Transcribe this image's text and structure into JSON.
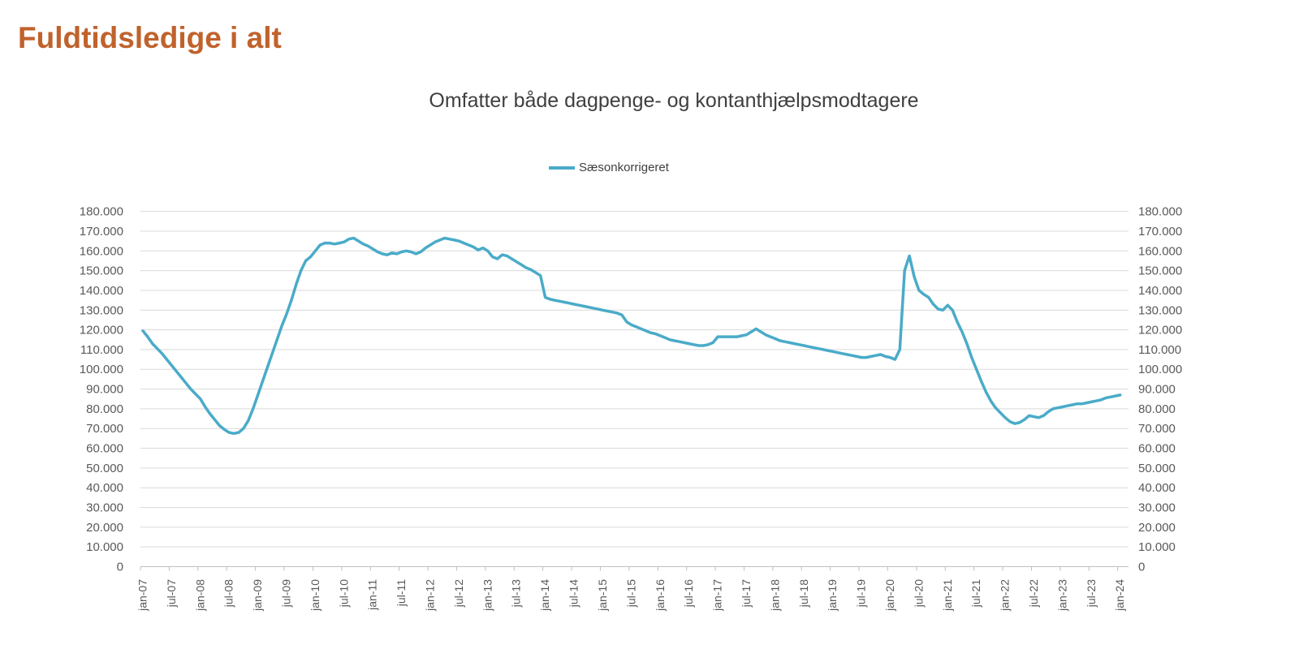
{
  "page": {
    "title": "Fuldtidsledige i alt",
    "title_color": "#C0622C"
  },
  "chart": {
    "title": "Omfatter både dagpenge- og kontanthjælpsmodtagere",
    "legend": [
      {
        "label": "Sæsonkorrigeret",
        "color": "#4AABC8"
      }
    ]
  },
  "chart_data": {
    "type": "line",
    "title": "Omfatter både dagpenge- og kontanthjælpsmodtagere",
    "xlabel": "",
    "ylabel": "",
    "ylim": [
      0,
      180000
    ],
    "y_ticks": [
      0,
      10000,
      20000,
      30000,
      40000,
      50000,
      60000,
      70000,
      80000,
      90000,
      100000,
      110000,
      120000,
      130000,
      140000,
      150000,
      160000,
      170000,
      180000
    ],
    "y_tick_labels": [
      "0",
      "10.000",
      "20.000",
      "30.000",
      "40.000",
      "50.000",
      "60.000",
      "70.000",
      "80.000",
      "90.000",
      "100.000",
      "110.000",
      "120.000",
      "130.000",
      "140.000",
      "150.000",
      "160.000",
      "170.000",
      "180.000"
    ],
    "grid": "horizontal",
    "legend_position": "top-center",
    "y_axis_sides": "both",
    "x_start_month": "jan-07",
    "x_end_month": "jan-24",
    "x_tick_interval_months": 6,
    "x_tick_labels": [
      "jan-07",
      "jul-07",
      "jan-08",
      "jul-08",
      "jan-09",
      "jul-09",
      "jan-10",
      "jul-10",
      "jan-11",
      "jul-11",
      "jan-12",
      "jul-12",
      "jan-13",
      "jul-13",
      "jan-14",
      "jul-14",
      "jan-15",
      "jul-15",
      "jan-16",
      "jul-16",
      "jan-17",
      "jul-17",
      "jan-18",
      "jul-18",
      "jan-19",
      "jul-19",
      "jan-20",
      "jul-20",
      "jan-21",
      "jul-21",
      "jan-22",
      "jul-22",
      "jan-23",
      "jul-23",
      "jan-24"
    ],
    "series": [
      {
        "name": "Sæsonkorrigeret",
        "color": "#4AABC8",
        "frequency": "monthly",
        "values": [
          119500,
          116500,
          113000,
          110500,
          108000,
          105000,
          102000,
          99000,
          96000,
          93000,
          90000,
          87500,
          85000,
          81000,
          77500,
          74500,
          71500,
          69500,
          68000,
          67500,
          68000,
          70000,
          74000,
          80000,
          87000,
          94000,
          101000,
          108000,
          115000,
          122000,
          128000,
          135000,
          143000,
          150000,
          155000,
          157000,
          160000,
          163000,
          164000,
          164000,
          163500,
          164000,
          164500,
          166000,
          166500,
          165000,
          163500,
          162500,
          161000,
          159500,
          158500,
          158000,
          159000,
          158500,
          159500,
          160000,
          159500,
          158500,
          159500,
          161500,
          163000,
          164500,
          165500,
          166500,
          166000,
          165500,
          165000,
          164000,
          163000,
          162000,
          160500,
          161500,
          160000,
          157000,
          156000,
          158000,
          157500,
          156000,
          154500,
          153000,
          151500,
          150500,
          149000,
          147500,
          136500,
          135500,
          135000,
          134500,
          134000,
          133500,
          133000,
          132500,
          132000,
          131500,
          131000,
          130500,
          130000,
          129500,
          129000,
          128500,
          127500,
          124000,
          122500,
          121500,
          120500,
          119500,
          118500,
          118000,
          117000,
          116000,
          115000,
          114500,
          114000,
          113500,
          113000,
          112500,
          112000,
          112000,
          112500,
          113500,
          116500,
          116500,
          116500,
          116500,
          116500,
          117000,
          117500,
          119000,
          120500,
          119000,
          117500,
          116500,
          115500,
          114500,
          114000,
          113500,
          113000,
          112500,
          112000,
          111500,
          111000,
          110500,
          110000,
          109500,
          109000,
          108500,
          108000,
          107500,
          107000,
          106500,
          106000,
          106000,
          106500,
          107000,
          107500,
          106500,
          106000,
          105000,
          110000,
          150000,
          157500,
          147000,
          140000,
          138000,
          136500,
          133000,
          130500,
          130000,
          132500,
          130000,
          124000,
          119000,
          113000,
          106000,
          100000,
          94000,
          88500,
          84000,
          80500,
          78000,
          75500,
          73500,
          72500,
          73000,
          74500,
          76500,
          76000,
          75500,
          76500,
          78500,
          80000,
          80500,
          81000,
          81500,
          82000,
          82500,
          82500,
          83000,
          83500,
          84000,
          84500,
          85500,
          86000,
          86500,
          87000
        ]
      }
    ],
    "style": {
      "gridline_color": "#D9D9D9",
      "axis_color": "#BFBFBF",
      "tick_label_color": "#595959",
      "line_width": 3.5
    }
  }
}
